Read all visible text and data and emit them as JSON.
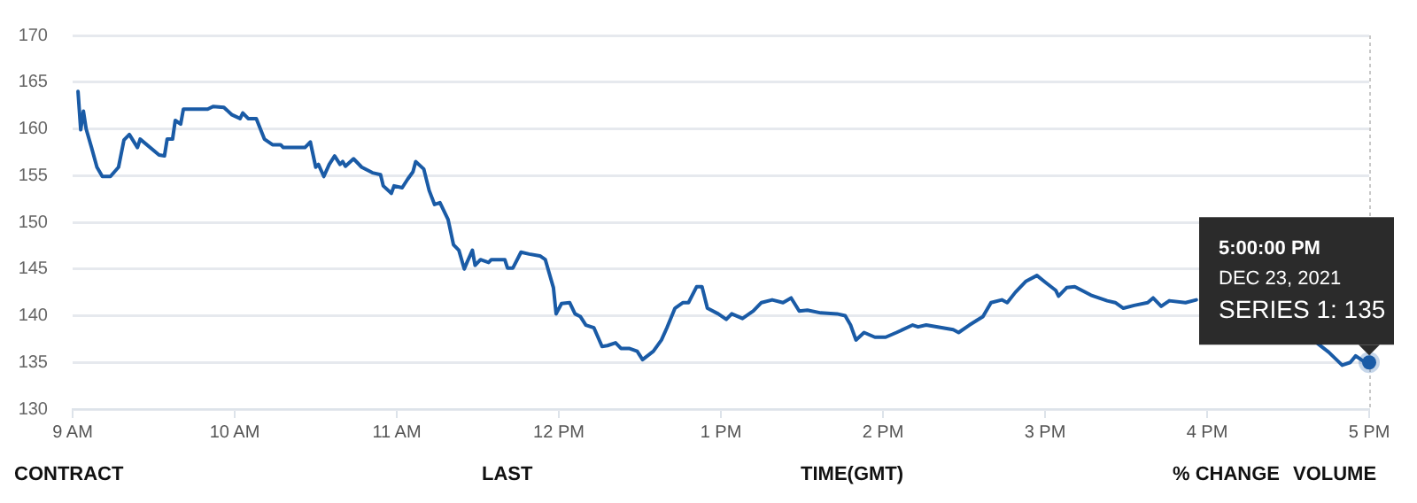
{
  "chart_data": {
    "type": "line",
    "xlim": [
      "2021-12-23T09:00",
      "2021-12-23T17:00"
    ],
    "ylim": [
      130,
      170
    ],
    "xticks": [
      {
        "value": "2021-12-23T09:00",
        "label": "9 AM"
      },
      {
        "value": "2021-12-23T10:00",
        "label": "10 AM"
      },
      {
        "value": "2021-12-23T11:00",
        "label": "11 AM"
      },
      {
        "value": "2021-12-23T12:00",
        "label": "12 PM"
      },
      {
        "value": "2021-12-23T13:00",
        "label": "1 PM"
      },
      {
        "value": "2021-12-23T14:00",
        "label": "2 PM"
      },
      {
        "value": "2021-12-23T15:00",
        "label": "3 PM"
      },
      {
        "value": "2021-12-23T16:00",
        "label": "4 PM"
      },
      {
        "value": "2021-12-23T17:00",
        "label": "5 PM"
      }
    ],
    "yticks": [
      130,
      135,
      140,
      145,
      150,
      155,
      160,
      165,
      170
    ],
    "grid": "y",
    "legend": false,
    "marker": "none",
    "line_style": "solid",
    "x": [
      "2021-12-23T09:02",
      "2021-12-23T09:03",
      "2021-12-23T09:04",
      "2021-12-23T09:05",
      "2021-12-23T09:07",
      "2021-12-23T09:09",
      "2021-12-23T09:11",
      "2021-12-23T09:14",
      "2021-12-23T09:17",
      "2021-12-23T09:19",
      "2021-12-23T09:21",
      "2021-12-23T09:24",
      "2021-12-23T09:25",
      "2021-12-23T09:32",
      "2021-12-23T09:34",
      "2021-12-23T09:35",
      "2021-12-23T09:37",
      "2021-12-23T09:38",
      "2021-12-23T09:40",
      "2021-12-23T09:41",
      "2021-12-23T09:50",
      "2021-12-23T09:52",
      "2021-12-23T09:56",
      "2021-12-23T09:59",
      "2021-12-23T10:02",
      "2021-12-23T10:03",
      "2021-12-23T10:05",
      "2021-12-23T10:08",
      "2021-12-23T10:11",
      "2021-12-23T10:14",
      "2021-12-23T10:17",
      "2021-12-23T10:18",
      "2021-12-23T10:26",
      "2021-12-23T10:28",
      "2021-12-23T10:30",
      "2021-12-23T10:31",
      "2021-12-23T10:33",
      "2021-12-23T10:35",
      "2021-12-23T10:37",
      "2021-12-23T10:39",
      "2021-12-23T10:40",
      "2021-12-23T10:41",
      "2021-12-23T10:44",
      "2021-12-23T10:47",
      "2021-12-23T10:51",
      "2021-12-23T10:54",
      "2021-12-23T10:55",
      "2021-12-23T10:58",
      "2021-12-23T10:59",
      "2021-12-23T11:02",
      "2021-12-23T11:04",
      "2021-12-23T11:06",
      "2021-12-23T11:07",
      "2021-12-23T11:10",
      "2021-12-23T11:12",
      "2021-12-23T11:14",
      "2021-12-23T11:16",
      "2021-12-23T11:19",
      "2021-12-23T11:21",
      "2021-12-23T11:23",
      "2021-12-23T11:25",
      "2021-12-23T11:26",
      "2021-12-23T11:28",
      "2021-12-23T11:29",
      "2021-12-23T11:31",
      "2021-12-23T11:34",
      "2021-12-23T11:35",
      "2021-12-23T11:40",
      "2021-12-23T11:41",
      "2021-12-23T11:43",
      "2021-12-23T11:46",
      "2021-12-23T11:49",
      "2021-12-23T11:53",
      "2021-12-23T11:55",
      "2021-12-23T11:58",
      "2021-12-23T11:59",
      "2021-12-23T12:01",
      "2021-12-23T12:04",
      "2021-12-23T12:06",
      "2021-12-23T12:08",
      "2021-12-23T12:10",
      "2021-12-23T12:13",
      "2021-12-23T12:16",
      "2021-12-23T12:18",
      "2021-12-23T12:21",
      "2021-12-23T12:23",
      "2021-12-23T12:26",
      "2021-12-23T12:29",
      "2021-12-23T12:31",
      "2021-12-23T12:35",
      "2021-12-23T12:38",
      "2021-12-23T12:40",
      "2021-12-23T12:43",
      "2021-12-23T12:46",
      "2021-12-23T12:48",
      "2021-12-23T12:51",
      "2021-12-23T12:53",
      "2021-12-23T12:55",
      "2021-12-23T12:59",
      "2021-12-23T13:02",
      "2021-12-23T13:04",
      "2021-12-23T13:08",
      "2021-12-23T13:12",
      "2021-12-23T13:15",
      "2021-12-23T13:19",
      "2021-12-23T13:23",
      "2021-12-23T13:26",
      "2021-12-23T13:29",
      "2021-12-23T13:32",
      "2021-12-23T13:37",
      "2021-12-23T13:43",
      "2021-12-23T13:46",
      "2021-12-23T13:48",
      "2021-12-23T13:50",
      "2021-12-23T13:53",
      "2021-12-23T13:57",
      "2021-12-23T14:01",
      "2021-12-23T14:05",
      "2021-12-23T14:11",
      "2021-12-23T14:13",
      "2021-12-23T14:16",
      "2021-12-23T14:26",
      "2021-12-23T14:28",
      "2021-12-23T14:32",
      "2021-12-23T14:37",
      "2021-12-23T14:40",
      "2021-12-23T14:44",
      "2021-12-23T14:46",
      "2021-12-23T14:49",
      "2021-12-23T14:53",
      "2021-12-23T14:57",
      "2021-12-23T15:00",
      "2021-12-23T15:04",
      "2021-12-23T15:05",
      "2021-12-23T15:08",
      "2021-12-23T15:11",
      "2021-12-23T15:17",
      "2021-12-23T15:23",
      "2021-12-23T15:26",
      "2021-12-23T15:29",
      "2021-12-23T15:33",
      "2021-12-23T15:38",
      "2021-12-23T15:40",
      "2021-12-23T15:43",
      "2021-12-23T15:46",
      "2021-12-23T15:52",
      "2021-12-23T15:56",
      "2021-12-23T16:24",
      "2021-12-23T16:41",
      "2021-12-23T16:45",
      "2021-12-23T16:50",
      "2021-12-23T16:53",
      "2021-12-23T16:55",
      "2021-12-23T16:58",
      "2021-12-23T17:00"
    ],
    "series": [
      {
        "color": "#1a5ba6",
        "values": [
          164,
          159.9,
          161.9,
          160,
          158,
          155.9,
          154.9,
          154.9,
          155.9,
          158.8,
          159.4,
          158,
          158.9,
          157.2,
          157.1,
          158.9,
          158.9,
          160.9,
          160.5,
          162.1,
          162.1,
          162.4,
          162.3,
          161.5,
          161.1,
          161.7,
          161.1,
          161.1,
          158.9,
          158.3,
          158.3,
          158,
          158,
          158.6,
          155.9,
          156.2,
          154.9,
          156.2,
          157.1,
          156.2,
          156.5,
          156,
          156.8,
          155.9,
          155.3,
          155.1,
          153.9,
          153.1,
          153.9,
          153.7,
          154.6,
          155.4,
          156.5,
          155.7,
          153.4,
          151.9,
          152.1,
          150.3,
          147.6,
          147,
          145,
          145.7,
          147,
          145.4,
          146,
          145.7,
          146,
          146,
          145.1,
          145.1,
          146.8,
          146.6,
          146.4,
          146,
          143,
          140.2,
          141.3,
          141.4,
          140.2,
          139.9,
          139,
          138.7,
          136.7,
          136.8,
          137.1,
          136.5,
          136.5,
          136.2,
          135.3,
          136.2,
          137.4,
          138.7,
          140.8,
          141.4,
          141.4,
          143.1,
          143.1,
          140.8,
          140.2,
          139.6,
          140.2,
          139.7,
          140.5,
          141.4,
          141.7,
          141.4,
          141.9,
          140.5,
          140.6,
          140.3,
          140.2,
          140,
          139,
          137.4,
          138.2,
          137.7,
          137.7,
          138.2,
          139,
          138.8,
          139,
          138.5,
          138.2,
          139,
          139.9,
          141.4,
          141.7,
          141.4,
          142.5,
          143.7,
          144.3,
          143.6,
          142.7,
          142.1,
          143,
          143.1,
          142.2,
          141.6,
          141.4,
          140.8,
          141.1,
          141.4,
          141.9,
          141,
          141.6,
          141.4,
          141.7,
          null,
          137,
          136.1,
          134.7,
          135,
          135.7,
          135.1,
          135
        ]
      }
    ],
    "annotations": [
      {
        "text": "5:00:00 PM\nDEC 23, 2021\nSERIES 1: 135",
        "x": "2021-12-23T17:00",
        "y": 135
      },
      "CONTRACT",
      "LAST",
      "TIME(GMT)",
      "% CHANGE",
      "VOLUME"
    ]
  }
}
